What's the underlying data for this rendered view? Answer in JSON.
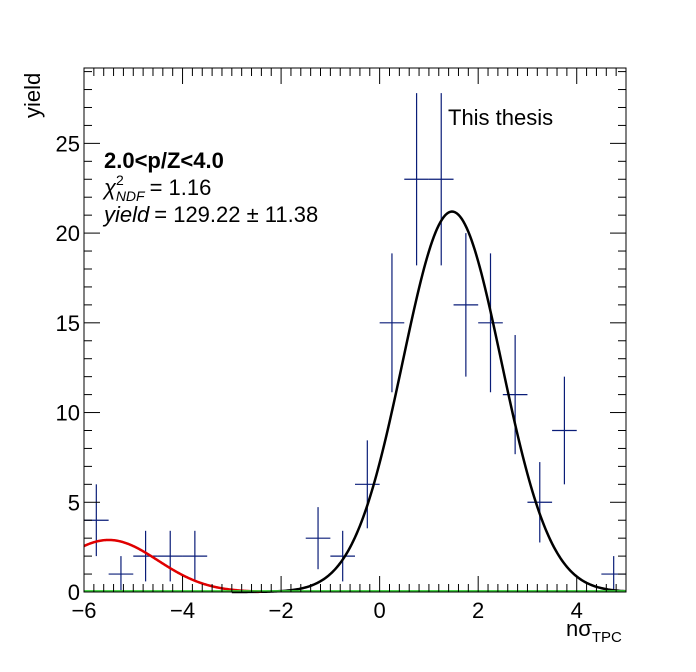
{
  "chart_data": {
    "type": "scatter",
    "title": "",
    "xlabel": "nσ",
    "xlabel_sub": "TPC",
    "ylabel": "yield",
    "xlim": [
      -6,
      5
    ],
    "ylim": [
      0,
      29.2
    ],
    "x_ticks": [
      -6,
      -4,
      -2,
      0,
      2,
      4
    ],
    "y_ticks": [
      0,
      5,
      10,
      15,
      20,
      25
    ],
    "x_tick_labels": [
      "−6",
      "−4",
      "−2",
      "0",
      "2",
      "4"
    ],
    "y_tick_labels": [
      "0",
      "5",
      "10",
      "15",
      "20",
      "25"
    ],
    "grid": false,
    "annotation_label": "This thesis",
    "info": {
      "range": "2.0<p/Z<4.0",
      "chi2_symbol": "χ",
      "chi2_sup": "2",
      "chi2_sub": "NDF",
      "chi2_value": "= 1.16",
      "yield_symbol": "yield",
      "yield_value": "= 129.22 ± 11.38"
    },
    "series": [
      {
        "kind": "errorbars",
        "color": "#0a1d78",
        "bin_width": 0.5,
        "points": [
          {
            "x": -5.75,
            "y": 4,
            "err": 2.0
          },
          {
            "x": -5.25,
            "y": 1,
            "err": 1.0
          },
          {
            "x": -4.75,
            "y": 2,
            "err": 1.41
          },
          {
            "x": -4.25,
            "y": 2,
            "err": 1.41
          },
          {
            "x": -3.75,
            "y": 2,
            "err": 1.41
          },
          {
            "x": -1.25,
            "y": 3,
            "err": 1.73
          },
          {
            "x": -0.75,
            "y": 2,
            "err": 1.41
          },
          {
            "x": -0.25,
            "y": 6,
            "err": 2.45
          },
          {
            "x": 0.25,
            "y": 15,
            "err": 3.87
          },
          {
            "x": 0.75,
            "y": 23,
            "err": 4.8
          },
          {
            "x": 1.25,
            "y": 23,
            "err": 4.8
          },
          {
            "x": 1.75,
            "y": 16,
            "err": 4.0
          },
          {
            "x": 2.25,
            "y": 15,
            "err": 3.87
          },
          {
            "x": 2.75,
            "y": 11,
            "err": 3.32
          },
          {
            "x": 3.25,
            "y": 5,
            "err": 2.24
          },
          {
            "x": 3.75,
            "y": 9,
            "err": 3.0
          },
          {
            "x": 4.75,
            "y": 1,
            "err": 1.0
          }
        ]
      },
      {
        "kind": "gaussian",
        "color": "#000000",
        "amplitude": 21.2,
        "mean": 1.47,
        "sigma": 1.0,
        "x_range": [
          -3.0,
          5.0
        ]
      },
      {
        "kind": "gaussian",
        "color": "#e00000",
        "amplitude": 2.9,
        "mean": -5.5,
        "sigma": 1.0,
        "x_range": [
          -6.0,
          -2.4
        ]
      },
      {
        "kind": "line",
        "color": "#33cc33",
        "x": [
          -6,
          5
        ],
        "y": [
          0.02,
          0.02
        ]
      }
    ]
  }
}
